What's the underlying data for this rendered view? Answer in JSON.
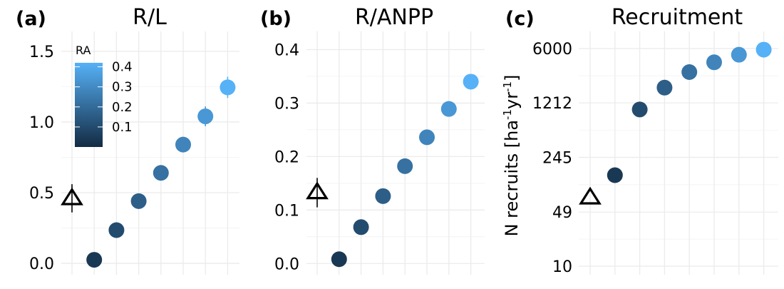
{
  "chart_data": [
    {
      "type": "scatter",
      "panel_label": "(a)",
      "title": "R/L",
      "ylabel": "",
      "ylim": [
        -0.02,
        1.55
      ],
      "yticks": [
        0.0,
        0.5,
        1.0,
        1.5
      ],
      "ytick_labels": [
        "0.0",
        "0.5",
        "1.0",
        "1.5"
      ],
      "scale": "linear",
      "reference": {
        "value": 0.46,
        "err_low": 0.36,
        "err_high": 0.56,
        "marker": "open-triangle"
      },
      "points": [
        {
          "value": 0.025,
          "ra": 0.04
        },
        {
          "value": 0.235,
          "ra": 0.1
        },
        {
          "value": 0.44,
          "ra": 0.16
        },
        {
          "value": 0.64,
          "ra": 0.22
        },
        {
          "value": 0.84,
          "ra": 0.28
        },
        {
          "value": 1.04,
          "ra": 0.34,
          "err_low": 0.97,
          "err_high": 1.11
        },
        {
          "value": 1.245,
          "ra": 0.42,
          "err_low": 1.17,
          "err_high": 1.32
        }
      ],
      "legend": {
        "title": "RA",
        "ticks": [
          0.1,
          0.2,
          0.3,
          0.4
        ],
        "tick_labels": [
          "0.1",
          "0.2",
          "0.3",
          "0.4"
        ],
        "range": [
          0.0,
          0.42
        ],
        "placement": "top-left",
        "low_color": "#132B43",
        "high_color": "#56B1F7"
      },
      "grid": true
    },
    {
      "type": "scatter",
      "panel_label": "(b)",
      "title": "R/ANPP",
      "ylabel": "",
      "ylim": [
        -0.005,
        0.41
      ],
      "yticks": [
        0.0,
        0.1,
        0.2,
        0.3,
        0.4
      ],
      "ytick_labels": [
        "0.0",
        "0.1",
        "0.2",
        "0.3",
        "0.4"
      ],
      "scale": "linear",
      "reference": {
        "value": 0.133,
        "err_low": 0.105,
        "err_high": 0.16,
        "marker": "open-triangle"
      },
      "points": [
        {
          "value": 0.008,
          "ra": 0.04
        },
        {
          "value": 0.068,
          "ra": 0.1
        },
        {
          "value": 0.126,
          "ra": 0.16
        },
        {
          "value": 0.182,
          "ra": 0.22
        },
        {
          "value": 0.236,
          "ra": 0.28
        },
        {
          "value": 0.289,
          "ra": 0.34
        },
        {
          "value": 0.34,
          "ra": 0.42
        }
      ],
      "grid": true
    },
    {
      "type": "scatter",
      "panel_label": "(c)",
      "title": "Recruitment",
      "ylabel": "N recruits [ha",
      "ylabel_sup1": "-1",
      "ylabel_mid": "yr",
      "ylabel_sup2": "-1",
      "ylabel_end": "]",
      "ylim": [
        10,
        6800
      ],
      "yticks": [
        10,
        49,
        245,
        1212,
        6000
      ],
      "ytick_labels": [
        "10",
        "49",
        "245",
        "1212",
        "6000"
      ],
      "scale": "log",
      "reference": {
        "value": 75,
        "marker": "open-triangle"
      },
      "points": [
        {
          "value": 145,
          "ra": 0.04
        },
        {
          "value": 1000,
          "ra": 0.1
        },
        {
          "value": 1900,
          "ra": 0.16
        },
        {
          "value": 3000,
          "ra": 0.22
        },
        {
          "value": 4000,
          "ra": 0.28
        },
        {
          "value": 5000,
          "ra": 0.34
        },
        {
          "value": 5800,
          "ra": 0.42
        }
      ],
      "grid": true
    }
  ]
}
